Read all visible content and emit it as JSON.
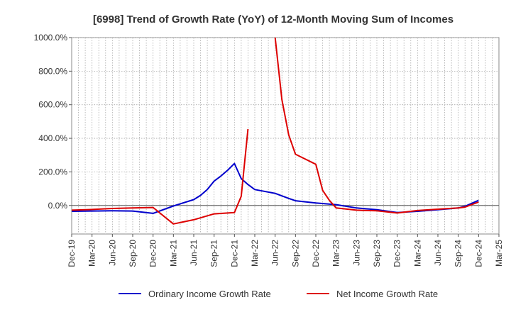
{
  "chart_data": {
    "type": "line",
    "title": "[6998]  Trend of Growth Rate (YoY) of 12-Month Moving Sum of Incomes",
    "xlabel": "",
    "ylabel": "",
    "x_ticks": [
      "Dec-19",
      "Mar-20",
      "Jun-20",
      "Sep-20",
      "Dec-20",
      "Mar-21",
      "Jun-21",
      "Sep-21",
      "Dec-21",
      "Mar-22",
      "Jun-22",
      "Sep-22",
      "Dec-22",
      "Mar-23",
      "Jun-23",
      "Sep-23",
      "Dec-23",
      "Mar-24",
      "Jun-24",
      "Sep-24",
      "Dec-24",
      "Mar-25"
    ],
    "y_ticks": [
      "0.0%",
      "200.0%",
      "400.0%",
      "600.0%",
      "800.0%",
      "1000.0%"
    ],
    "y_tick_values": [
      0,
      200,
      400,
      600,
      800,
      1000
    ],
    "ylim": [
      -170,
      1000
    ],
    "xlim_months": [
      0,
      63
    ],
    "grid": true,
    "legend_position": "bottom",
    "series": [
      {
        "name": "Ordinary Income Growth Rate",
        "color": "#0000cc",
        "points": [
          [
            0,
            -35
          ],
          [
            3,
            -33
          ],
          [
            6,
            -32
          ],
          [
            9,
            -33
          ],
          [
            12,
            -47
          ],
          [
            15,
            -3
          ],
          [
            18,
            35
          ],
          [
            19,
            60
          ],
          [
            20,
            95
          ],
          [
            21,
            145
          ],
          [
            22,
            175
          ],
          [
            23,
            210
          ],
          [
            24,
            250
          ],
          [
            25,
            160
          ],
          [
            26,
            125
          ],
          [
            27,
            95
          ],
          [
            30,
            72
          ],
          [
            32,
            42
          ],
          [
            33,
            28
          ],
          [
            36,
            15
          ],
          [
            39,
            5
          ],
          [
            42,
            -15
          ],
          [
            45,
            -25
          ],
          [
            48,
            -42
          ],
          [
            51,
            -35
          ],
          [
            54,
            -25
          ],
          [
            57,
            -15
          ],
          [
            58,
            -5
          ],
          [
            60,
            30
          ]
        ]
      },
      {
        "name": "Net Income Growth Rate",
        "color": "#dd0000",
        "points": [
          [
            0,
            -28
          ],
          [
            3,
            -24
          ],
          [
            6,
            -18
          ],
          [
            9,
            -15
          ],
          [
            12,
            -12
          ],
          [
            15,
            -110
          ],
          [
            18,
            -85
          ],
          [
            21,
            -50
          ],
          [
            24,
            -42
          ],
          [
            25,
            55
          ],
          [
            26,
            455
          ]
        ]
      },
      {
        "name": "Net Income Growth Rate",
        "color": "#dd0000",
        "points": [
          [
            30,
            1000
          ],
          [
            31,
            630
          ],
          [
            32,
            420
          ],
          [
            33,
            305
          ],
          [
            36,
            245
          ],
          [
            37,
            90
          ],
          [
            38,
            30
          ],
          [
            39,
            -15
          ],
          [
            42,
            -28
          ],
          [
            45,
            -32
          ],
          [
            48,
            -45
          ],
          [
            51,
            -30
          ],
          [
            54,
            -22
          ],
          [
            57,
            -15
          ],
          [
            58,
            -10
          ],
          [
            60,
            20
          ]
        ]
      }
    ],
    "legend": [
      {
        "name": "Ordinary Income Growth Rate",
        "color": "#0000cc"
      },
      {
        "name": "Net Income Growth Rate",
        "color": "#dd0000"
      }
    ]
  }
}
